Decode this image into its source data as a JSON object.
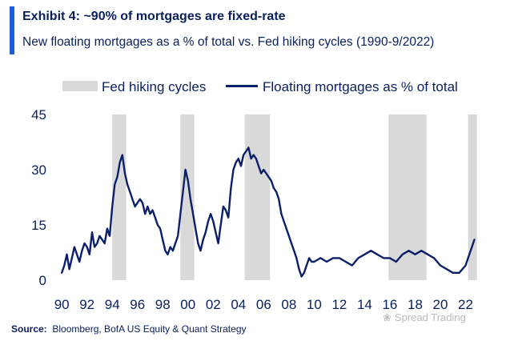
{
  "header": {
    "title": "Exhibit 4: ~90% of mortgages are fixed-rate",
    "subtitle": "New floating mortgages as a % of total vs. Fed hiking cycles (1990-9/2022)"
  },
  "colors": {
    "accent": "#1a5fd6",
    "series_line": "#0b1f6b",
    "shade": "#d9d9d9",
    "text": "#0a1f5c"
  },
  "chart_data": {
    "type": "line",
    "title": "Exhibit 4: ~90% of mortgages are fixed-rate",
    "subtitle": "New floating mortgages as a % of total vs. Fed hiking cycles (1990-9/2022)",
    "xlabel": "",
    "ylabel": "",
    "xlim": [
      1989.8,
      2023.3
    ],
    "ylim": [
      0,
      45
    ],
    "y_ticks": [
      0,
      15,
      30,
      45
    ],
    "x_ticks": [
      1990,
      1992,
      1994,
      1996,
      1998,
      2000,
      2002,
      2004,
      2006,
      2008,
      2010,
      2012,
      2014,
      2016,
      2018,
      2020,
      2022
    ],
    "x_tick_labels": [
      "90",
      "92",
      "94",
      "96",
      "98",
      "00",
      "02",
      "04",
      "06",
      "08",
      "10",
      "12",
      "14",
      "16",
      "18",
      "20",
      "22"
    ],
    "grid": false,
    "legend": {
      "position": "top",
      "entries": [
        "Fed hiking cycles",
        "Floating mortgages as % of total"
      ]
    },
    "shaded_periods": {
      "name": "Fed hiking cycles",
      "ranges": [
        [
          1994.0,
          1995.1
        ],
        [
          1999.4,
          2000.5
        ],
        [
          2004.5,
          2006.5
        ],
        [
          2015.9,
          2018.9
        ],
        [
          2022.2,
          2022.9
        ]
      ]
    },
    "series": [
      {
        "name": "Floating mortgages as % of total",
        "x": [
          1990.0,
          1990.2,
          1990.4,
          1990.6,
          1990.8,
          1991.0,
          1991.2,
          1991.4,
          1991.6,
          1991.8,
          1992.0,
          1992.2,
          1992.4,
          1992.6,
          1992.8,
          1993.0,
          1993.2,
          1993.4,
          1993.6,
          1993.8,
          1994.0,
          1994.2,
          1994.4,
          1994.6,
          1994.8,
          1995.0,
          1995.2,
          1995.4,
          1995.6,
          1995.8,
          1996.0,
          1996.2,
          1996.4,
          1996.6,
          1996.8,
          1997.0,
          1997.2,
          1997.4,
          1997.6,
          1997.8,
          1998.0,
          1998.2,
          1998.4,
          1998.6,
          1998.8,
          1999.0,
          1999.2,
          1999.4,
          1999.6,
          1999.8,
          2000.0,
          2000.2,
          2000.4,
          2000.6,
          2000.8,
          2001.0,
          2001.2,
          2001.4,
          2001.6,
          2001.8,
          2002.0,
          2002.2,
          2002.4,
          2002.6,
          2002.8,
          2003.0,
          2003.2,
          2003.4,
          2003.6,
          2003.8,
          2004.0,
          2004.2,
          2004.4,
          2004.6,
          2004.8,
          2005.0,
          2005.2,
          2005.4,
          2005.6,
          2005.8,
          2006.0,
          2006.2,
          2006.4,
          2006.6,
          2006.8,
          2007.0,
          2007.2,
          2007.4,
          2007.6,
          2007.8,
          2008.0,
          2008.2,
          2008.4,
          2008.6,
          2008.8,
          2009.0,
          2009.2,
          2009.4,
          2009.6,
          2009.8,
          2010.0,
          2010.5,
          2011.0,
          2011.5,
          2012.0,
          2012.5,
          2013.0,
          2013.5,
          2014.0,
          2014.5,
          2015.0,
          2015.5,
          2016.0,
          2016.5,
          2017.0,
          2017.5,
          2018.0,
          2018.5,
          2019.0,
          2019.5,
          2020.0,
          2020.5,
          2021.0,
          2021.5,
          2022.0,
          2022.3,
          2022.5,
          2022.7
        ],
        "values": [
          2,
          4,
          7,
          3,
          6,
          9,
          7,
          5,
          8,
          10,
          9,
          7,
          13,
          9,
          10,
          12,
          11,
          10,
          14,
          12,
          20,
          26,
          28,
          32,
          34,
          29,
          26,
          24,
          22,
          20,
          21,
          22,
          21,
          18,
          20,
          18,
          19,
          17,
          15,
          14,
          11,
          8,
          7,
          9,
          8,
          10,
          12,
          18,
          24,
          30,
          27,
          22,
          18,
          14,
          10,
          8,
          11,
          13,
          16,
          18,
          16,
          13,
          10,
          15,
          20,
          19,
          17,
          25,
          30,
          32,
          33,
          31,
          34,
          35,
          36,
          33,
          34,
          33,
          31,
          29,
          30,
          29,
          28,
          27,
          25,
          24,
          22,
          18,
          16,
          14,
          12,
          10,
          8,
          6,
          3,
          1,
          2,
          4,
          6,
          5,
          5,
          6,
          5,
          6,
          6,
          5,
          4,
          6,
          7,
          8,
          7,
          6,
          6,
          5,
          7,
          8,
          7,
          8,
          7,
          6,
          4,
          3,
          2,
          2,
          4,
          7,
          9,
          11
        ]
      }
    ]
  },
  "source": {
    "label": "Source:",
    "text": "Bloomberg, BofA US Equity & Quant Strategy"
  },
  "watermark": {
    "text": "Spread Trading"
  }
}
